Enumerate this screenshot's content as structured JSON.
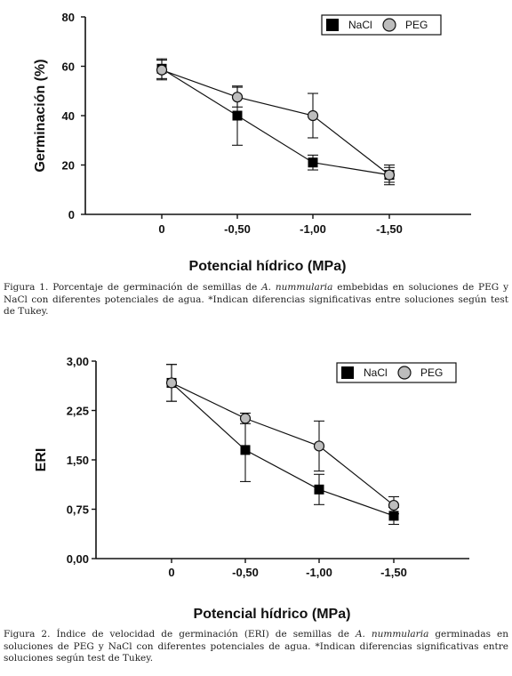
{
  "figures": [
    {
      "caption": {
        "lead": "Figura 1. Porcentaje de germinación de semillas de ",
        "species": "A. nummularia",
        "rest": " embebidas en soluciones de PEG y NaCl con diferentes potenciales de agua. *Indican diferencias significativas entre soluciones según test de Tukey."
      }
    },
    {
      "caption": {
        "lead": "Figura 2. Índice de velocidad de germinación (ERI) de semillas de ",
        "species": "A. nummularia",
        "rest": " germinadas en soluciones de PEG y NaCl con diferentes potenciales de agua. *Indican diferencias significativas entre soluciones según test de Tukey."
      }
    }
  ],
  "chart_data": [
    {
      "type": "line",
      "categories": [
        "0",
        "-0,50",
        "-1,00",
        "-1,50"
      ],
      "xlabel": "Potencial hídrico (MPa)",
      "ylabel": "Germinación (%)",
      "ylim": [
        0,
        80
      ],
      "yticks": [
        0,
        20,
        40,
        60,
        80
      ],
      "ytick_labels": [
        "0",
        "20",
        "40",
        "60",
        "80"
      ],
      "legend_position": "top-right",
      "series": [
        {
          "name": "NaCl",
          "marker": "square",
          "color": "#000000",
          "values": [
            59,
            40,
            21,
            16
          ],
          "errors": [
            4,
            12,
            3,
            3
          ]
        },
        {
          "name": "PEG",
          "marker": "circle",
          "color": "#bdbdbd",
          "values": [
            58.5,
            47.5,
            40,
            16
          ],
          "errors": [
            4,
            4,
            9,
            4
          ]
        }
      ]
    },
    {
      "type": "line",
      "categories": [
        "0",
        "-0,50",
        "-1,00",
        "-1,50"
      ],
      "xlabel": "Potencial hídrico (MPa)",
      "ylabel": "ERI",
      "ylim": [
        0,
        3
      ],
      "yticks": [
        0,
        0.75,
        1.5,
        2.25,
        3
      ],
      "ytick_labels": [
        "0,00",
        "0,75",
        "1,50",
        "2,25",
        "3,00"
      ],
      "legend_position": "top-right",
      "series": [
        {
          "name": "NaCl",
          "marker": "square",
          "color": "#000000",
          "values": [
            2.67,
            1.65,
            1.05,
            0.65
          ],
          "errors": [
            0.28,
            0.48,
            0.23,
            0.13
          ]
        },
        {
          "name": "PEG",
          "marker": "circle",
          "color": "#bdbdbd",
          "values": [
            2.67,
            2.13,
            1.71,
            0.81
          ],
          "errors": [
            0.28,
            0.08,
            0.38,
            0.13
          ]
        }
      ]
    }
  ]
}
